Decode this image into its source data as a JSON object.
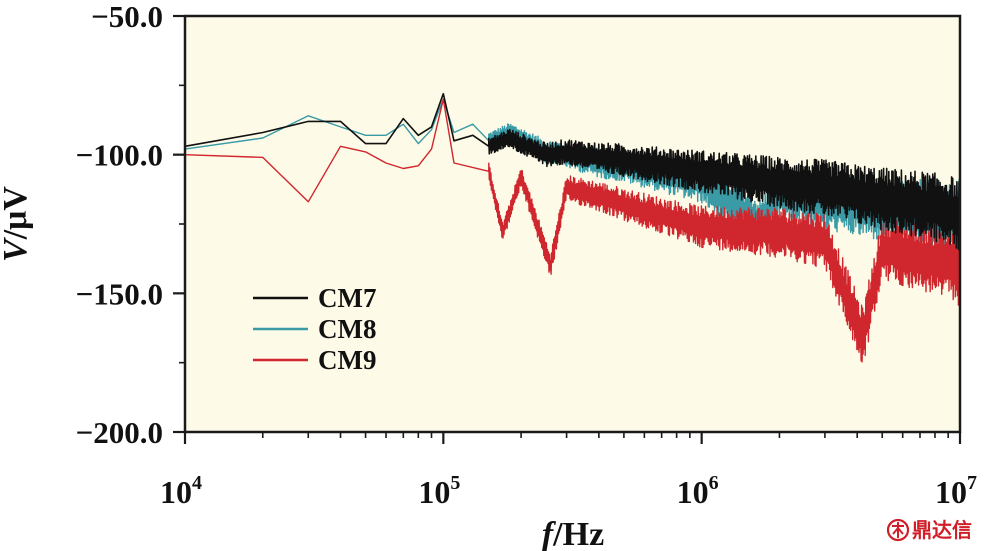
{
  "chart_data": {
    "type": "line",
    "xlabel_italic": "f",
    "xlabel_unit": "/Hz",
    "ylabel_italic": "V",
    "ylabel_unit": "/μV",
    "xscale": "log",
    "xlim": [
      10000,
      10000000
    ],
    "ylim": [
      -200,
      -50
    ],
    "x_ticks": [
      {
        "base": "10",
        "exp": "4"
      },
      {
        "base": "10",
        "exp": "5"
      },
      {
        "base": "10",
        "exp": "6"
      },
      {
        "base": "10",
        "exp": "7"
      }
    ],
    "y_ticks": [
      "−50.0",
      "−100.0",
      "−150.0",
      "−200.0"
    ],
    "y_tick_values": [
      -50,
      -100,
      -150,
      -200
    ],
    "legend_position": "lower-left",
    "series": [
      {
        "name": "CM7",
        "color": "#111111",
        "x": [
          10000,
          20000,
          30000,
          40000,
          50000,
          60000,
          70000,
          80000,
          90000,
          100000,
          110000,
          130000,
          150000,
          180000,
          200000,
          250000,
          300000,
          400000,
          500000,
          700000,
          1000000,
          2000000,
          3000000,
          5000000,
          7000000,
          9000000,
          10000000
        ],
        "y": [
          -97,
          -92,
          -88,
          -88,
          -96,
          -96,
          -87,
          -93,
          -90,
          -78,
          -95,
          -93,
          -97,
          -94,
          -96,
          -100,
          -99,
          -101,
          -102,
          -104,
          -106,
          -110,
          -112,
          -116,
          -118,
          -120,
          -122
        ]
      },
      {
        "name": "CM8",
        "color": "#3a9aa6",
        "x": [
          10000,
          20000,
          30000,
          40000,
          50000,
          60000,
          70000,
          80000,
          90000,
          100000,
          110000,
          130000,
          150000,
          180000,
          200000,
          250000,
          300000,
          400000,
          500000,
          700000,
          1000000,
          1700000,
          2000000,
          3000000,
          5000000,
          7000000,
          10000000
        ],
        "y": [
          -98,
          -94,
          -86,
          -90,
          -93,
          -93,
          -89,
          -96,
          -91,
          -80,
          -92,
          -89,
          -95,
          -92,
          -94,
          -99,
          -100,
          -103,
          -104,
          -107,
          -110,
          -125,
          -114,
          -117,
          -120,
          -121,
          -122
        ]
      },
      {
        "name": "CM9",
        "color": "#d0262d",
        "x": [
          10000,
          20000,
          30000,
          40000,
          50000,
          60000,
          70000,
          80000,
          90000,
          100000,
          110000,
          150000,
          170000,
          200000,
          260000,
          300000,
          400000,
          500000,
          700000,
          1000000,
          2000000,
          3000000,
          4200000,
          5000000,
          7000000,
          9500000,
          10000000
        ],
        "y": [
          -100,
          -101,
          -117,
          -97,
          -99,
          -103,
          -105,
          -104,
          -98,
          -80,
          -103,
          -106,
          -128,
          -108,
          -140,
          -112,
          -115,
          -118,
          -122,
          -126,
          -128,
          -131,
          -166,
          -134,
          -137,
          -140,
          -142
        ]
      }
    ]
  },
  "watermark": {
    "text": "鼎达信",
    "icon": "brand-seal-icon",
    "color": "#d11f2a"
  }
}
